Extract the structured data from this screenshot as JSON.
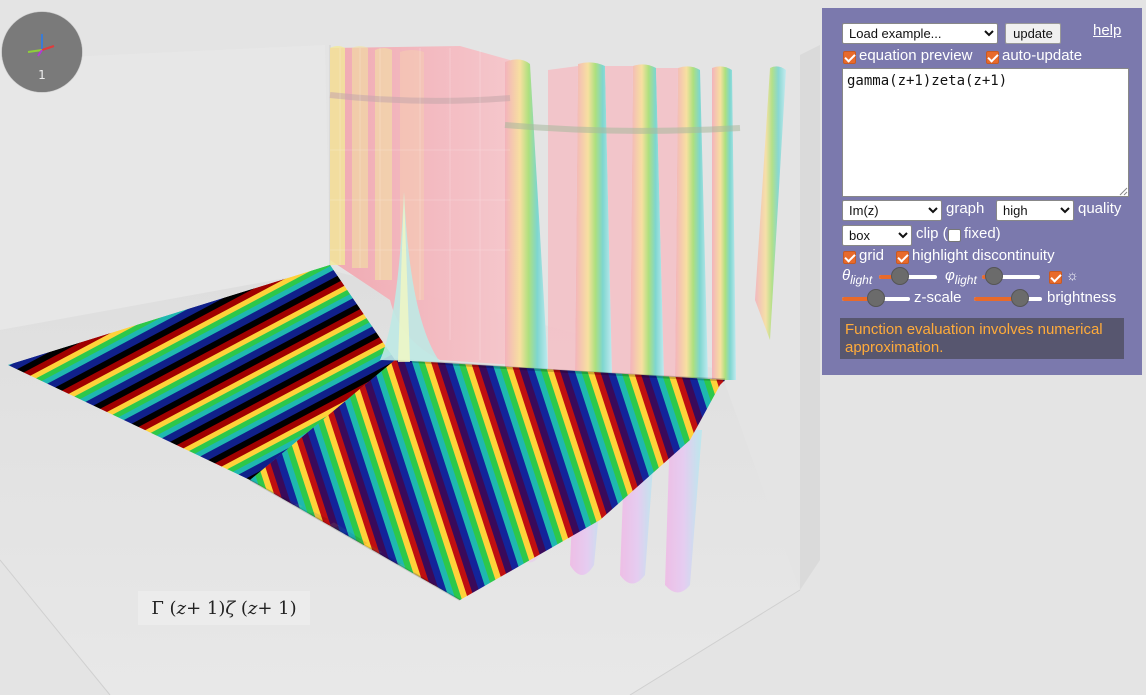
{
  "viewport": {
    "gizmo_label": "1",
    "equation_preview": {
      "gamma": "Γ",
      "z": "z",
      "plus_one": " + 1",
      "zeta": "ζ"
    }
  },
  "panel": {
    "load_example": {
      "selected": "Load example..."
    },
    "update_label": "update",
    "help_label": "help",
    "equation_preview": {
      "label": "equation preview",
      "checked": true
    },
    "auto_update": {
      "label": "auto-update",
      "checked": true
    },
    "equation_text": "gamma(z+1)zeta(z+1)",
    "graph_mode": {
      "selected": "Im(z)",
      "label": "graph"
    },
    "quality": {
      "selected": "high",
      "label": "quality"
    },
    "clip": {
      "selected": "box",
      "label": "clip (",
      "fixed_label": "fixed)",
      "fixed_checked": false
    },
    "grid": {
      "label": "grid",
      "checked": true
    },
    "highlight_discontinuity": {
      "label": "highlight discontinuity",
      "checked": true
    },
    "theta_light": {
      "symbol": "θ",
      "sub": "light",
      "value": 0.37
    },
    "phi_light": {
      "symbol": "φ",
      "sub": "light",
      "value": 0.2
    },
    "light_toggle": {
      "checked": true,
      "icon": "sun-icon",
      "glyph": "☼"
    },
    "z_scale": {
      "label": "z-scale",
      "value": 0.5
    },
    "brightness": {
      "label": "brightness",
      "value": 0.68
    },
    "status": "Function evaluation involves numerical approximation."
  },
  "colors": {
    "panel_bg": "#7b79ad",
    "accent": "#e86a2b",
    "status_text": "#ffab3a",
    "status_bg": "#57566f"
  }
}
